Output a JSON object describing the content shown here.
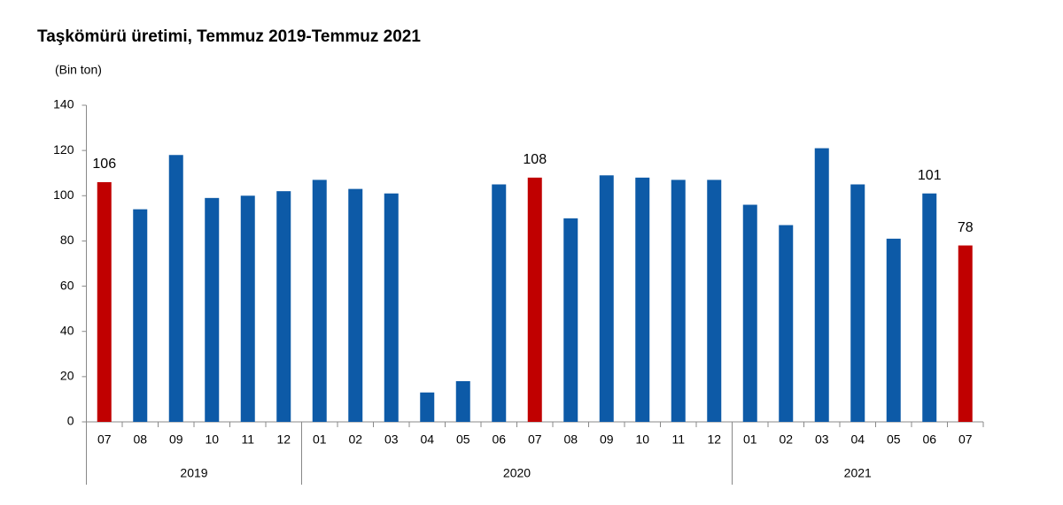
{
  "chart_data": {
    "type": "bar",
    "title": "Taşkömürü üretimi, Temmuz 2019-Temmuz 2021",
    "y_label": "(Bin ton)",
    "categories": [
      "07",
      "08",
      "09",
      "10",
      "11",
      "12",
      "01",
      "02",
      "03",
      "04",
      "05",
      "06",
      "07",
      "08",
      "09",
      "10",
      "11",
      "12",
      "01",
      "02",
      "03",
      "04",
      "05",
      "06",
      "07"
    ],
    "groups": [
      {
        "label": "2019",
        "size": 6
      },
      {
        "label": "2020",
        "size": 12
      },
      {
        "label": "2021",
        "size": 7
      }
    ],
    "values": [
      106,
      94,
      118,
      99,
      100,
      102,
      107,
      103,
      101,
      13,
      18,
      105,
      108,
      90,
      109,
      108,
      107,
      107,
      96,
      87,
      121,
      105,
      81,
      101,
      78
    ],
    "value_labels": [
      "106",
      null,
      null,
      null,
      null,
      null,
      null,
      null,
      null,
      null,
      null,
      null,
      "108",
      null,
      null,
      null,
      null,
      null,
      null,
      null,
      null,
      null,
      null,
      "101",
      "78"
    ],
    "colors": [
      "#c00000",
      "#0d5aa7",
      "#0d5aa7",
      "#0d5aa7",
      "#0d5aa7",
      "#0d5aa7",
      "#0d5aa7",
      "#0d5aa7",
      "#0d5aa7",
      "#0d5aa7",
      "#0d5aa7",
      "#0d5aa7",
      "#c00000",
      "#0d5aa7",
      "#0d5aa7",
      "#0d5aa7",
      "#0d5aa7",
      "#0d5aa7",
      "#0d5aa7",
      "#0d5aa7",
      "#0d5aa7",
      "#0d5aa7",
      "#0d5aa7",
      "#0d5aa7",
      "#c00000"
    ],
    "ylim": [
      0,
      140
    ],
    "yticks": [
      0,
      20,
      40,
      60,
      80,
      100,
      120,
      140
    ],
    "grid": false
  }
}
